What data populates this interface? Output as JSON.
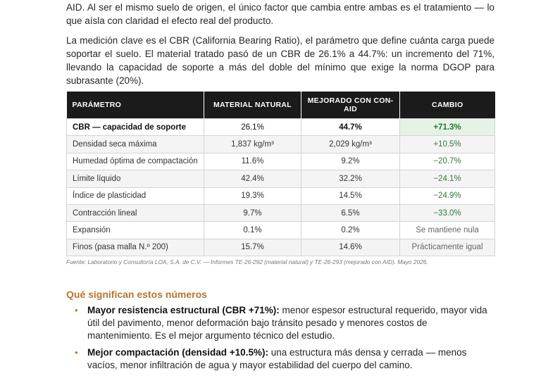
{
  "intro": {
    "para1": "AID. Al ser el mismo suelo de origen, el único factor que cambia entre ambas es el tratamiento — lo que aísla con claridad el efecto real del producto.",
    "para2": "La medición clave es el CBR (California Bearing Ratio), el parámetro que define cuánta carga puede soportar el suelo. El material tratado pasó de un CBR de 26.1% a 44.7%: un incremento del 71%, llevando la capacidad de soporte a más del doble del mínimo que exige la norma DGOP para subrasante (20%)."
  },
  "table": {
    "headers": [
      "PARÁMETRO",
      "MATERIAL NATURAL",
      "MEJORADO CON CON-AID",
      "CAMBIO"
    ],
    "rows": [
      [
        "CBR — capacidad de soporte",
        "26.1%",
        "44.7%",
        "+71.3%"
      ],
      [
        "Densidad seca máxima",
        "1,837 kg/m³",
        "2,029 kg/m³",
        "+10.5%"
      ],
      [
        "Humedad óptima de compactación",
        "11.6%",
        "9.2%",
        "−20.7%"
      ],
      [
        "Límite líquido",
        "42.4%",
        "32.2%",
        "−24.1%"
      ],
      [
        "Índice de plasticidad",
        "19.3%",
        "14.5%",
        "−24.9%"
      ],
      [
        "Contracción lineal",
        "9.7%",
        "6.5%",
        "−33.0%"
      ],
      [
        "Expansión",
        "0.1%",
        "0.2%",
        "Se mantiene nula"
      ],
      [
        "Finos (pasa malla N.º 200)",
        "15.7%",
        "14.6%",
        "Prácticamente igual"
      ]
    ],
    "source": "Fuente: Laboratorio y Consultoría LOA, S.A. de C.V. — Informes TE-26-292 (material natural) y TE-26-293 (mejorado con AID). Mayo 2026."
  },
  "colors": {
    "accent": "#b5762a",
    "header_bg": "#1b1b1b",
    "positive": "#2d7a3a",
    "highlight_bg": "#e6f2e6"
  },
  "section": {
    "title": "Qué significan estos números",
    "bullets": [
      {
        "bold": "Mayor resistencia estructural (CBR +71%):",
        "text": " menor espesor estructural requerido, mayor vida útil del pavimento, menor deformación bajo tránsito pesado y menores costos de mantenimiento. Es el mejor argumento técnico del estudio."
      },
      {
        "bold": "Mejor compactación (densidad +10.5%):",
        "text": " una estructura más densa y cerrada — menos vacíos, menor infiltración de agua y mayor estabilidad del cuerpo del camino."
      }
    ]
  }
}
